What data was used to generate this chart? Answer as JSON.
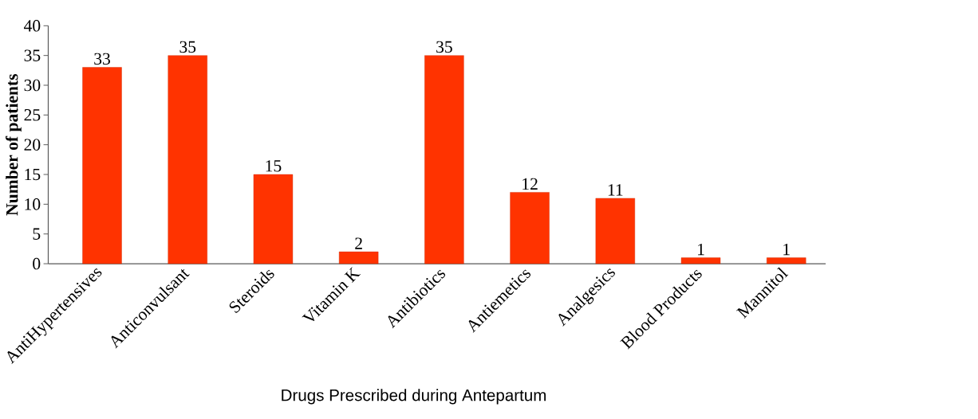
{
  "chart_data": {
    "type": "bar",
    "xlabel": "Drugs Prescribed during Antepartum",
    "ylabel": "Number of patients",
    "categories": [
      "AntiHypertensives",
      "Anticonvulsant",
      "Steroids",
      "Vitamin K",
      "Antibiotics",
      "Antiemetics",
      "Analgesics",
      "Blood Products",
      "Mannitol"
    ],
    "values": [
      33,
      35,
      15,
      2,
      35,
      12,
      11,
      1,
      1
    ],
    "color": "#ff3300",
    "ylim": [
      0,
      40
    ],
    "yticks": [
      0,
      5,
      10,
      15,
      20,
      25,
      30,
      35,
      40
    ],
    "data_labels": true
  }
}
